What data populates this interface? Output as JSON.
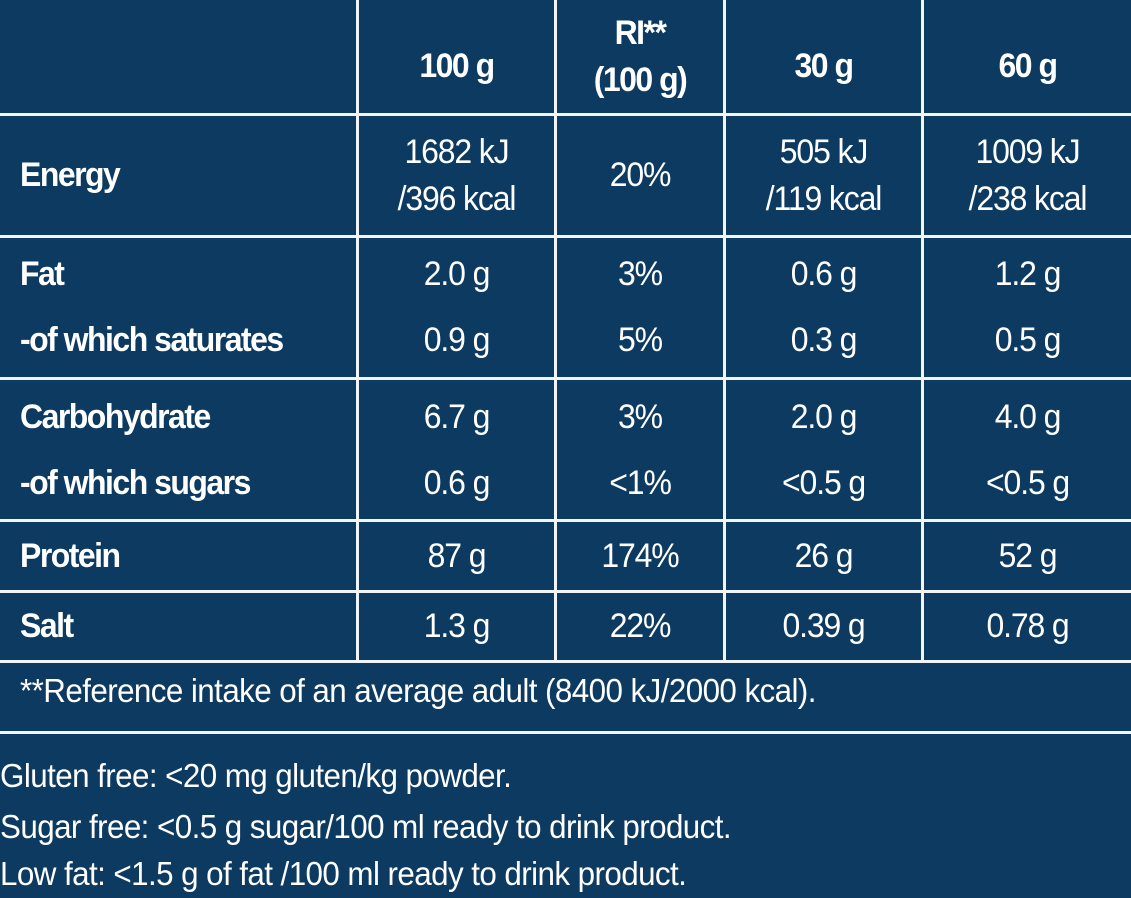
{
  "table": {
    "headers": {
      "col_100g": "100 g",
      "col_ri_line1": "RI**",
      "col_ri_line2": "(100 g)",
      "col_30g": "30 g",
      "col_60g": "60 g"
    },
    "rows": {
      "energy": {
        "label": "Energy",
        "v100_line1": "1682 kJ",
        "v100_line2": "/396 kcal",
        "ri": "20%",
        "v30_line1": "505 kJ",
        "v30_line2": "/119 kcal",
        "v60_line1": "1009 kJ",
        "v60_line2": "/238 kcal"
      },
      "fat": {
        "label": "Fat",
        "v100": "2.0 g",
        "ri": "3%",
        "v30": "0.6 g",
        "v60": "1.2 g"
      },
      "saturates": {
        "label": "-of which saturates",
        "v100": "0.9 g",
        "ri": "5%",
        "v30": "0.3 g",
        "v60": "0.5 g"
      },
      "carbohydrate": {
        "label": "Carbohydrate",
        "v100": "6.7 g",
        "ri": "3%",
        "v30": "2.0 g",
        "v60": "4.0 g"
      },
      "sugars": {
        "label": "-of which sugars",
        "v100": "0.6 g",
        "ri": "<1%",
        "v30": "<0.5 g",
        "v60": "<0.5 g"
      },
      "protein": {
        "label": "Protein",
        "v100": "87 g",
        "ri": "174%",
        "v30": "26 g",
        "v60": "52 g"
      },
      "salt": {
        "label": "Salt",
        "v100": "1.3 g",
        "ri": "22%",
        "v30": "0.39 g",
        "v60": "0.78 g"
      }
    },
    "footnote": "**Reference intake of an average adult (8400 kJ/2000 kcal)."
  },
  "notes": [
    "Gluten free: <20 mg gluten/kg powder.",
    "Sugar free: <0.5 g sugar/100 ml ready to drink product.",
    "Low fat: <1.5 g of fat /100 ml ready to drink product."
  ],
  "colors": {
    "background": "#0c3a60",
    "grid_lines": "#f2f5f8",
    "text": "#ffffff"
  }
}
